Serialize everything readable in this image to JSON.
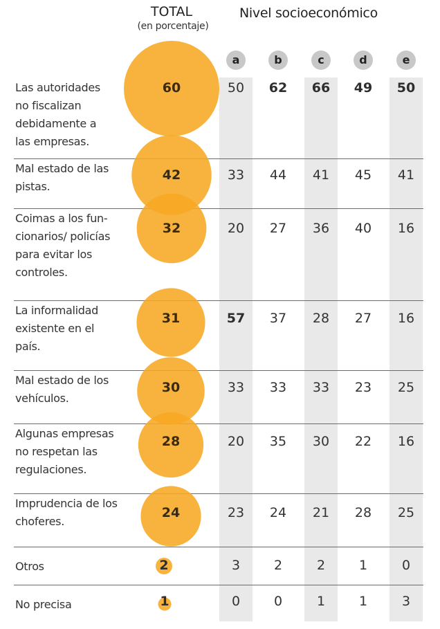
{
  "chart_data": {
    "type": "table",
    "title": "",
    "total_header": "TOTAL",
    "total_subheader": "(en porcentaje)",
    "group_header": "Nivel socioeconómico",
    "columns": [
      "a",
      "b",
      "c",
      "d",
      "e"
    ],
    "bubble_color": "#f7a823",
    "rows": [
      {
        "label": "Las autoridades no fiscalizan debidamente a las empresas.",
        "lines": [
          "Las autoridades",
          "no fiscalizan",
          "debidamente a",
          "las empresas."
        ],
        "total": 60,
        "values": [
          50,
          62,
          66,
          49,
          50
        ],
        "bold": [
          false,
          true,
          true,
          true,
          true
        ]
      },
      {
        "label": "Mal estado de las pistas.",
        "lines": [
          "Mal estado de las",
          "pistas."
        ],
        "total": 42,
        "values": [
          33,
          44,
          41,
          45,
          41
        ],
        "bold": [
          false,
          false,
          false,
          false,
          false
        ]
      },
      {
        "label": "Coimas a los funcionarios/ policías para evitar los controles.",
        "lines": [
          "Coimas a los fun-",
          "cionarios/ policías",
          "para evitar los",
          "controles."
        ],
        "total": 32,
        "values": [
          20,
          27,
          36,
          40,
          16
        ],
        "bold": [
          false,
          false,
          false,
          false,
          false
        ]
      },
      {
        "label": "La informalidad existente en el país.",
        "lines": [
          "La informalidad",
          "existente en el",
          "país."
        ],
        "total": 31,
        "values": [
          57,
          37,
          28,
          27,
          16
        ],
        "bold": [
          true,
          false,
          false,
          false,
          false
        ]
      },
      {
        "label": "Mal estado de los vehículos.",
        "lines": [
          "Mal estado de los",
          "vehículos."
        ],
        "total": 30,
        "values": [
          33,
          33,
          33,
          23,
          25
        ],
        "bold": [
          false,
          false,
          false,
          false,
          false
        ]
      },
      {
        "label": "Algunas empresas no respetan las regulaciones.",
        "lines": [
          "Algunas empresas",
          "no respetan las",
          "regulaciones."
        ],
        "total": 28,
        "values": [
          20,
          35,
          30,
          22,
          16
        ],
        "bold": [
          false,
          false,
          false,
          false,
          false
        ]
      },
      {
        "label": "Imprudencia de los choferes.",
        "lines": [
          "Imprudencia de los",
          "choferes."
        ],
        "total": 24,
        "values": [
          23,
          24,
          21,
          28,
          25
        ],
        "bold": [
          false,
          false,
          false,
          false,
          false
        ]
      },
      {
        "label": "Otros",
        "lines": [
          "Otros"
        ],
        "total": 2,
        "values": [
          3,
          2,
          2,
          1,
          0
        ],
        "bold": [
          false,
          false,
          false,
          false,
          false
        ]
      },
      {
        "label": "No precisa",
        "lines": [
          "No precisa"
        ],
        "total": 1,
        "values": [
          0,
          0,
          1,
          1,
          3
        ],
        "bold": [
          false,
          false,
          false,
          false,
          false
        ]
      }
    ]
  }
}
